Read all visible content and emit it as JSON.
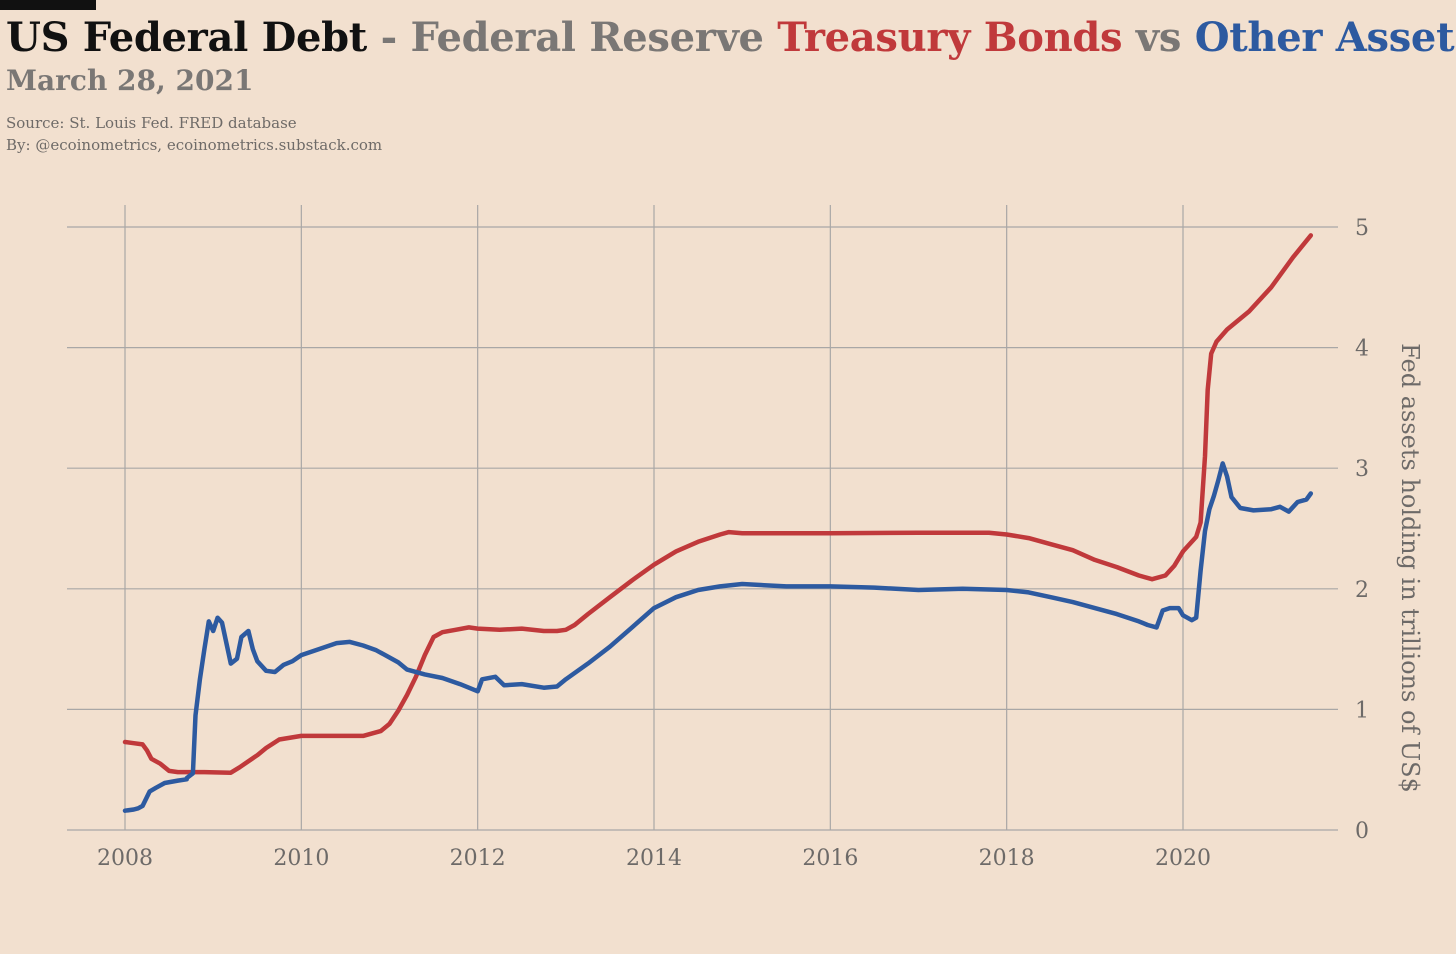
{
  "header": {
    "title_part1": "US Federal Debt",
    "title_part2": " - Federal Reserve ",
    "title_part3": "Treasury Bonds",
    "title_part4": " vs ",
    "title_part5": "Other Assets",
    "date": "March 28, 2021",
    "source": "Source: St. Louis Fed. FRED database",
    "by": "By: @ecoinometrics, ecoinometrics.substack.com"
  },
  "colors": {
    "background": "#f2e0cf",
    "title_black": "#111111",
    "title_gray": "#7a7775",
    "treasury": "#c0393b",
    "other": "#2d5aa0",
    "grid": "#a9a7a6"
  },
  "chart_data": {
    "type": "line",
    "ylabel": "Fed assets holding in trillions of US$",
    "xlim": [
      2007.35,
      2021.85
    ],
    "ylim": [
      0,
      5
    ],
    "x_ticks": [
      2008,
      2010,
      2012,
      2014,
      2016,
      2018,
      2020
    ],
    "y_ticks": [
      0,
      1,
      2,
      3,
      4,
      5
    ],
    "grid": true,
    "y_axis_side": "right",
    "series": [
      {
        "name": "Treasury Bonds",
        "color": "#c0393b",
        "points": [
          [
            2008.0,
            0.73
          ],
          [
            2008.1,
            0.72
          ],
          [
            2008.2,
            0.71
          ],
          [
            2008.25,
            0.66
          ],
          [
            2008.3,
            0.59
          ],
          [
            2008.4,
            0.55
          ],
          [
            2008.5,
            0.49
          ],
          [
            2008.6,
            0.48
          ],
          [
            2008.9,
            0.48
          ],
          [
            2009.2,
            0.475
          ],
          [
            2009.3,
            0.52
          ],
          [
            2009.5,
            0.62
          ],
          [
            2009.6,
            0.68
          ],
          [
            2009.75,
            0.75
          ],
          [
            2010.0,
            0.78
          ],
          [
            2010.5,
            0.78
          ],
          [
            2010.6,
            0.78
          ],
          [
            2010.7,
            0.78
          ],
          [
            2010.9,
            0.82
          ],
          [
            2011.0,
            0.88
          ],
          [
            2011.1,
            0.99
          ],
          [
            2011.2,
            1.12
          ],
          [
            2011.3,
            1.27
          ],
          [
            2011.4,
            1.45
          ],
          [
            2011.5,
            1.6
          ],
          [
            2011.6,
            1.64
          ],
          [
            2011.75,
            1.66
          ],
          [
            2011.9,
            1.68
          ],
          [
            2012.0,
            1.67
          ],
          [
            2012.25,
            1.66
          ],
          [
            2012.5,
            1.67
          ],
          [
            2012.75,
            1.65
          ],
          [
            2012.9,
            1.65
          ],
          [
            2013.0,
            1.66
          ],
          [
            2013.1,
            1.7
          ],
          [
            2013.25,
            1.79
          ],
          [
            2013.5,
            1.93
          ],
          [
            2013.75,
            2.07
          ],
          [
            2014.0,
            2.2
          ],
          [
            2014.25,
            2.31
          ],
          [
            2014.5,
            2.39
          ],
          [
            2014.75,
            2.45
          ],
          [
            2014.85,
            2.47
          ],
          [
            2015.0,
            2.46
          ],
          [
            2016.0,
            2.46
          ],
          [
            2017.0,
            2.465
          ],
          [
            2017.5,
            2.465
          ],
          [
            2017.8,
            2.465
          ],
          [
            2018.0,
            2.45
          ],
          [
            2018.25,
            2.42
          ],
          [
            2018.5,
            2.37
          ],
          [
            2018.75,
            2.32
          ],
          [
            2019.0,
            2.24
          ],
          [
            2019.25,
            2.18
          ],
          [
            2019.5,
            2.11
          ],
          [
            2019.65,
            2.08
          ],
          [
            2019.8,
            2.11
          ],
          [
            2019.9,
            2.19
          ],
          [
            2020.0,
            2.31
          ],
          [
            2020.15,
            2.43
          ],
          [
            2020.2,
            2.55
          ],
          [
            2020.25,
            3.1
          ],
          [
            2020.28,
            3.65
          ],
          [
            2020.32,
            3.95
          ],
          [
            2020.38,
            4.05
          ],
          [
            2020.5,
            4.15
          ],
          [
            2020.75,
            4.3
          ],
          [
            2021.0,
            4.5
          ],
          [
            2021.25,
            4.75
          ],
          [
            2021.45,
            4.93
          ]
        ]
      },
      {
        "name": "Other Assets",
        "color": "#2d5aa0",
        "points": [
          [
            2008.0,
            0.16
          ],
          [
            2008.1,
            0.17
          ],
          [
            2008.15,
            0.18
          ],
          [
            2008.2,
            0.2
          ],
          [
            2008.28,
            0.32
          ],
          [
            2008.35,
            0.35
          ],
          [
            2008.45,
            0.39
          ],
          [
            2008.6,
            0.41
          ],
          [
            2008.7,
            0.42
          ],
          [
            2008.7,
            0.43
          ],
          [
            2008.77,
            0.47
          ],
          [
            2008.8,
            0.95
          ],
          [
            2008.85,
            1.25
          ],
          [
            2008.9,
            1.5
          ],
          [
            2008.95,
            1.73
          ],
          [
            2009.0,
            1.65
          ],
          [
            2009.05,
            1.76
          ],
          [
            2009.1,
            1.72
          ],
          [
            2009.15,
            1.55
          ],
          [
            2009.2,
            1.38
          ],
          [
            2009.27,
            1.42
          ],
          [
            2009.32,
            1.6
          ],
          [
            2009.4,
            1.65
          ],
          [
            2009.45,
            1.5
          ],
          [
            2009.5,
            1.4
          ],
          [
            2009.6,
            1.32
          ],
          [
            2009.7,
            1.31
          ],
          [
            2009.8,
            1.37
          ],
          [
            2009.9,
            1.4
          ],
          [
            2010.0,
            1.45
          ],
          [
            2010.2,
            1.5
          ],
          [
            2010.4,
            1.55
          ],
          [
            2010.55,
            1.56
          ],
          [
            2010.7,
            1.53
          ],
          [
            2010.85,
            1.49
          ],
          [
            2011.0,
            1.43
          ],
          [
            2011.1,
            1.39
          ],
          [
            2011.2,
            1.33
          ],
          [
            2011.4,
            1.29
          ],
          [
            2011.6,
            1.26
          ],
          [
            2011.8,
            1.21
          ],
          [
            2011.9,
            1.18
          ],
          [
            2012.0,
            1.15
          ],
          [
            2012.05,
            1.25
          ],
          [
            2012.2,
            1.27
          ],
          [
            2012.3,
            1.2
          ],
          [
            2012.5,
            1.21
          ],
          [
            2012.75,
            1.18
          ],
          [
            2012.9,
            1.19
          ],
          [
            2013.0,
            1.25
          ],
          [
            2013.25,
            1.38
          ],
          [
            2013.5,
            1.52
          ],
          [
            2013.75,
            1.68
          ],
          [
            2014.0,
            1.84
          ],
          [
            2014.25,
            1.93
          ],
          [
            2014.5,
            1.99
          ],
          [
            2014.75,
            2.02
          ],
          [
            2015.0,
            2.04
          ],
          [
            2015.25,
            2.03
          ],
          [
            2015.5,
            2.02
          ],
          [
            2016.0,
            2.02
          ],
          [
            2016.5,
            2.01
          ],
          [
            2017.0,
            1.99
          ],
          [
            2017.5,
            2.0
          ],
          [
            2018.0,
            1.99
          ],
          [
            2018.25,
            1.97
          ],
          [
            2018.5,
            1.93
          ],
          [
            2018.75,
            1.89
          ],
          [
            2019.0,
            1.84
          ],
          [
            2019.25,
            1.79
          ],
          [
            2019.5,
            1.73
          ],
          [
            2019.6,
            1.7
          ],
          [
            2019.7,
            1.68
          ],
          [
            2019.77,
            1.82
          ],
          [
            2019.85,
            1.84
          ],
          [
            2019.95,
            1.84
          ],
          [
            2020.0,
            1.78
          ],
          [
            2020.1,
            1.74
          ],
          [
            2020.15,
            1.76
          ],
          [
            2020.2,
            2.15
          ],
          [
            2020.25,
            2.48
          ],
          [
            2020.3,
            2.66
          ],
          [
            2020.35,
            2.77
          ],
          [
            2020.4,
            2.9
          ],
          [
            2020.45,
            3.04
          ],
          [
            2020.5,
            2.93
          ],
          [
            2020.55,
            2.76
          ],
          [
            2020.65,
            2.67
          ],
          [
            2020.8,
            2.65
          ],
          [
            2021.0,
            2.66
          ],
          [
            2021.1,
            2.68
          ],
          [
            2021.2,
            2.64
          ],
          [
            2021.3,
            2.72
          ],
          [
            2021.4,
            2.74
          ],
          [
            2021.45,
            2.79
          ]
        ]
      }
    ]
  }
}
